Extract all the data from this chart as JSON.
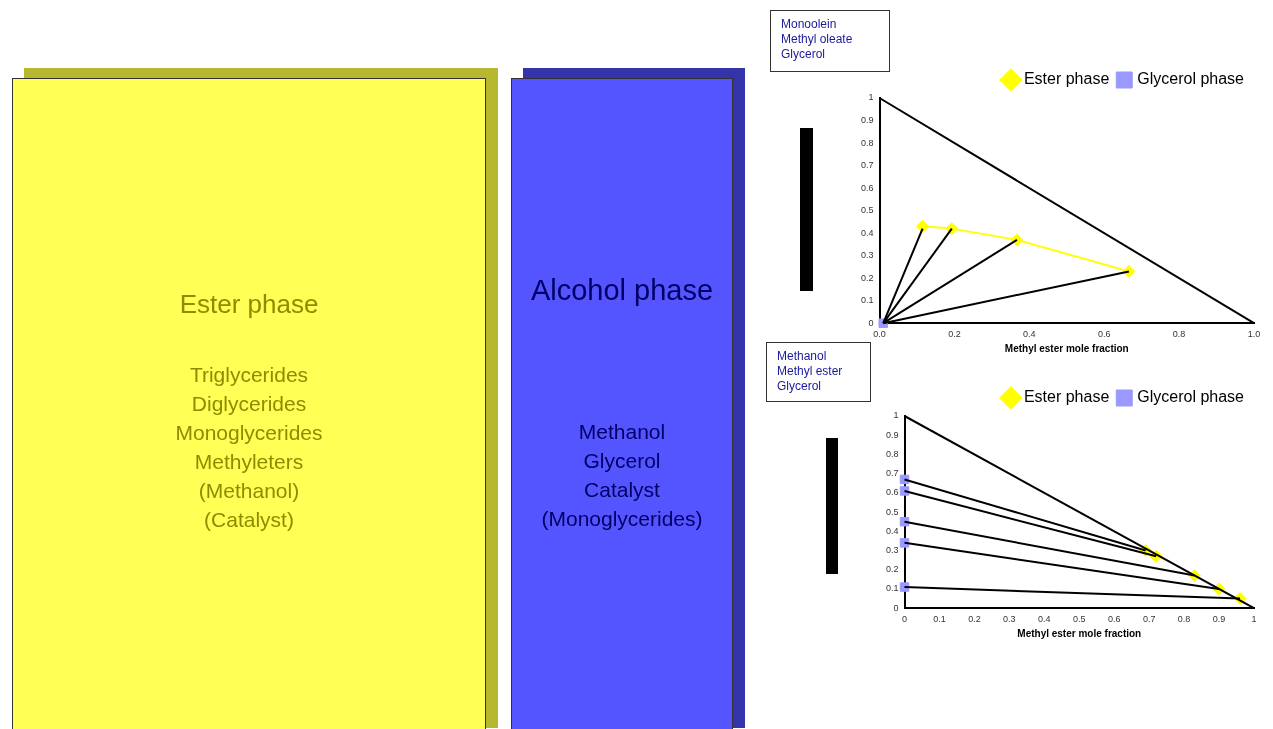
{
  "chart_data": [
    {
      "type": "other",
      "title": "Ester phase",
      "color": "#ffff55",
      "annotations": [
        "Triglycerides",
        "Diglycerides",
        "Monoglycerides",
        "Methyleters",
        "(Methanol)",
        "(Catalyst)"
      ]
    },
    {
      "type": "other",
      "title": "Alcohol phase",
      "color": "#5555ff",
      "annotations": [
        "Methanol",
        "Glycerol",
        "Catalyst",
        "(Monoglycerides)"
      ]
    },
    {
      "type": "scatter",
      "xlabel": "Methyl ester mole fraction",
      "annotations": [
        "Monoolein",
        "Methyl oleate",
        "Glycerol"
      ],
      "legend": "top right",
      "grid": false,
      "xlim": [
        0,
        1
      ],
      "ylim": [
        0,
        1
      ],
      "xticks": [
        {
          "value": 0,
          "label": "0.0"
        },
        0.2,
        0.4,
        0.6,
        0.8,
        {
          "value": 1,
          "label": "1.0"
        }
      ],
      "yticks": [
        0,
        0.1,
        0.2,
        0.3,
        0.4,
        0.5,
        0.6,
        0.7,
        0.8,
        0.9,
        1
      ],
      "series": [
        {
          "type": "line",
          "x": [
            0,
            1
          ],
          "values": [
            1,
            0
          ],
          "color": "#000000",
          "marker": "none"
        },
        {
          "type": "line",
          "x": [
            0.01,
            0.115
          ],
          "values": [
            0,
            0.42
          ],
          "color": "#000000",
          "marker": "none"
        },
        {
          "type": "line",
          "x": [
            0.01,
            0.193
          ],
          "values": [
            0,
            0.42
          ],
          "color": "#000000",
          "marker": "none"
        },
        {
          "type": "line",
          "x": [
            0.01,
            0.367
          ],
          "values": [
            0,
            0.37
          ],
          "color": "#000000",
          "marker": "none"
        },
        {
          "type": "line",
          "x": [
            0.01,
            0.666
          ],
          "values": [
            0,
            0.23
          ],
          "color": "#000000",
          "marker": "none"
        },
        {
          "type": "line",
          "name": "Ester phase",
          "x": [
            0.115,
            0.193,
            0.367,
            0.666
          ],
          "values": [
            0.43,
            0.42,
            0.37,
            0.23
          ],
          "color": "#ffff00",
          "marker": "diamond"
        },
        {
          "type": "scatter",
          "name": "Glycerol phase",
          "x": [
            0.01
          ],
          "values": [
            0
          ],
          "color": "#9999ff",
          "marker": "square"
        }
      ]
    },
    {
      "type": "scatter",
      "xlabel": "Methyl ester mole fraction",
      "annotations": [
        "Methanol",
        "Methyl ester",
        "Glycerol"
      ],
      "legend": "top right",
      "grid": false,
      "xlim": [
        0,
        1
      ],
      "ylim": [
        0,
        1
      ],
      "xticks": [
        0,
        0.1,
        0.2,
        0.3,
        0.4,
        0.5,
        0.6,
        0.7,
        0.8,
        0.9,
        1
      ],
      "yticks": [
        0,
        0.1,
        0.2,
        0.3,
        0.4,
        0.5,
        0.6,
        0.7,
        0.8,
        0.9,
        1
      ],
      "series": [
        {
          "type": "line",
          "x": [
            0,
            1
          ],
          "values": [
            1,
            0
          ],
          "color": "#000000",
          "marker": "none"
        },
        {
          "type": "line",
          "x": [
            0,
            0.69
          ],
          "values": [
            0.67,
            0.3
          ],
          "color": "#000000",
          "marker": "none"
        },
        {
          "type": "line",
          "x": [
            0,
            0.72
          ],
          "values": [
            0.61,
            0.27
          ],
          "color": "#000000",
          "marker": "none"
        },
        {
          "type": "line",
          "x": [
            0,
            0.83
          ],
          "values": [
            0.45,
            0.17
          ],
          "color": "#000000",
          "marker": "none"
        },
        {
          "type": "line",
          "x": [
            0,
            0.9
          ],
          "values": [
            0.34,
            0.1
          ],
          "color": "#000000",
          "marker": "none"
        },
        {
          "type": "line",
          "x": [
            0,
            0.96
          ],
          "values": [
            0.11,
            0.05
          ],
          "color": "#000000",
          "marker": "none"
        },
        {
          "type": "scatter",
          "name": "Ester phase",
          "x": [
            0.69,
            0.72,
            0.83,
            0.9,
            0.96
          ],
          "values": [
            0.3,
            0.27,
            0.17,
            0.1,
            0.05
          ],
          "color": "#ffff00",
          "marker": "diamond"
        },
        {
          "type": "scatter",
          "name": "Glycerol phase",
          "x": [
            0,
            0,
            0,
            0,
            0
          ],
          "values": [
            0.67,
            0.61,
            0.45,
            0.34,
            0.11
          ],
          "color": "#9999ff",
          "marker": "square"
        }
      ]
    }
  ]
}
